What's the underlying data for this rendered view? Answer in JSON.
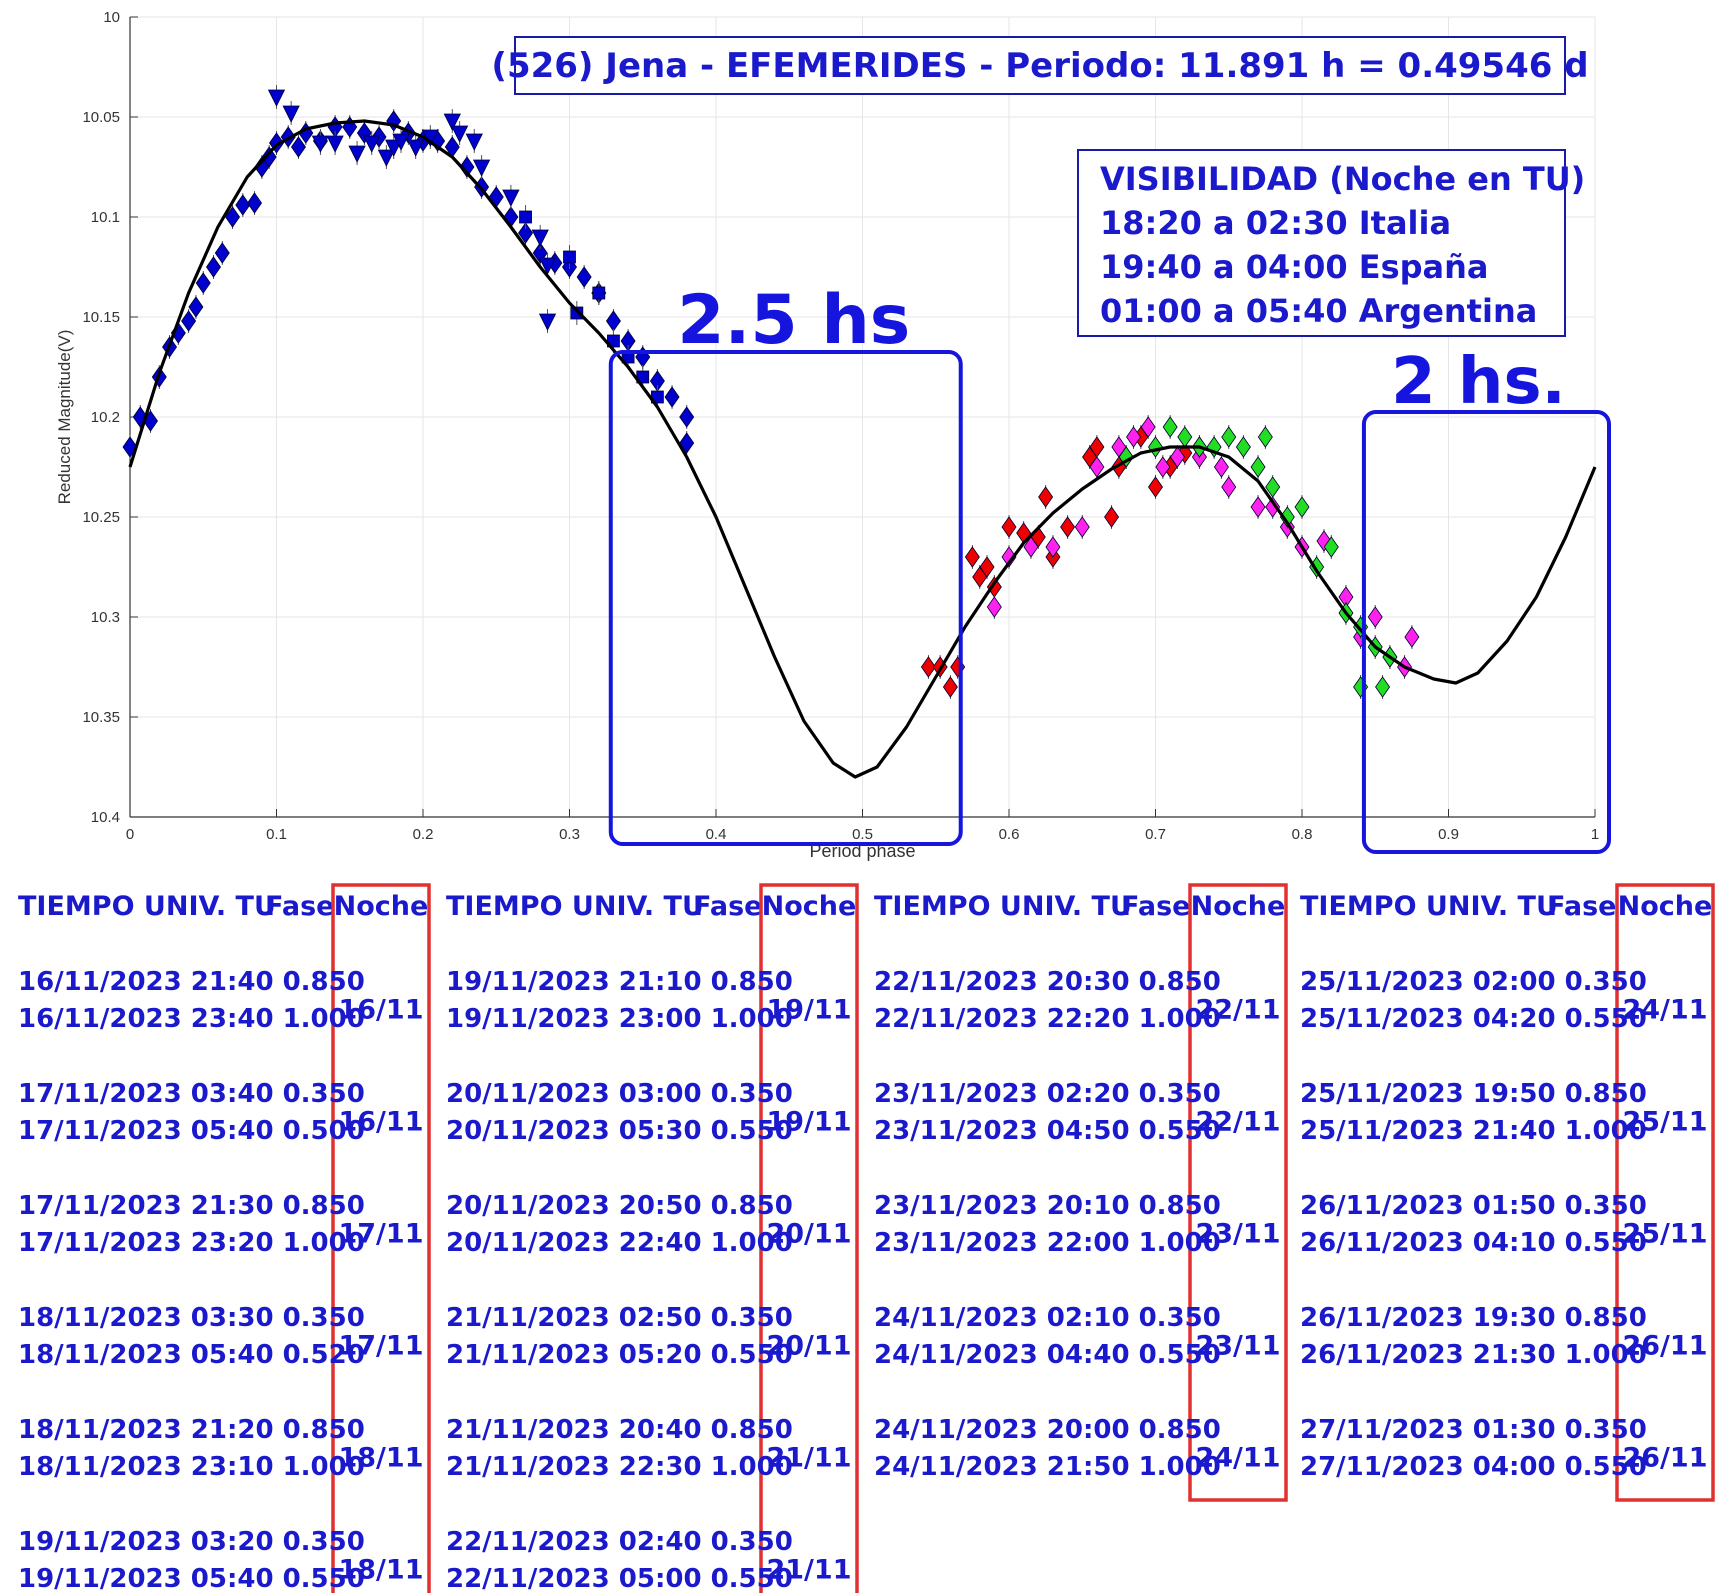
{
  "chart_data": {
    "type": "scatter",
    "title": "(526) Jena - EFEMERIDES - Periodo: 11.891 h = 0.49546 d",
    "xlabel": "Period phase",
    "ylabel": "Reduced Magnitude(V)",
    "xlim": [
      0,
      1
    ],
    "ylim": [
      10.4,
      10.0
    ],
    "y_inverted": true,
    "grid": true,
    "x_ticks": [
      "0",
      "0.1",
      "0.2",
      "0.3",
      "0.4",
      "0.5",
      "0.6",
      "0.7",
      "0.8",
      "0.9",
      "1"
    ],
    "y_ticks": [
      "10",
      "10.05",
      "10.1",
      "10.15",
      "10.2",
      "10.25",
      "10.3",
      "10.35",
      "10.4"
    ],
    "fit_curve": {
      "color": "#000000",
      "points": [
        [
          0,
          10.225
        ],
        [
          0.02,
          10.178
        ],
        [
          0.04,
          10.138
        ],
        [
          0.06,
          10.105
        ],
        [
          0.08,
          10.08
        ],
        [
          0.1,
          10.064
        ],
        [
          0.12,
          10.056
        ],
        [
          0.14,
          10.053
        ],
        [
          0.16,
          10.052
        ],
        [
          0.18,
          10.054
        ],
        [
          0.2,
          10.06
        ],
        [
          0.22,
          10.07
        ],
        [
          0.24,
          10.086
        ],
        [
          0.26,
          10.105
        ],
        [
          0.28,
          10.125
        ],
        [
          0.3,
          10.143
        ],
        [
          0.32,
          10.158
        ],
        [
          0.34,
          10.175
        ],
        [
          0.36,
          10.195
        ],
        [
          0.38,
          10.22
        ],
        [
          0.4,
          10.25
        ],
        [
          0.42,
          10.285
        ],
        [
          0.44,
          10.32
        ],
        [
          0.46,
          10.352
        ],
        [
          0.48,
          10.373
        ],
        [
          0.495,
          10.38
        ],
        [
          0.51,
          10.375
        ],
        [
          0.53,
          10.355
        ],
        [
          0.55,
          10.33
        ],
        [
          0.57,
          10.305
        ],
        [
          0.59,
          10.283
        ],
        [
          0.61,
          10.263
        ],
        [
          0.63,
          10.248
        ],
        [
          0.65,
          10.236
        ],
        [
          0.67,
          10.226
        ],
        [
          0.69,
          10.218
        ],
        [
          0.71,
          10.215
        ],
        [
          0.73,
          10.215
        ],
        [
          0.75,
          10.22
        ],
        [
          0.77,
          10.232
        ],
        [
          0.79,
          10.253
        ],
        [
          0.81,
          10.277
        ],
        [
          0.83,
          10.298
        ],
        [
          0.85,
          10.315
        ],
        [
          0.87,
          10.325
        ],
        [
          0.89,
          10.331
        ],
        [
          0.905,
          10.333
        ],
        [
          0.92,
          10.328
        ],
        [
          0.94,
          10.312
        ],
        [
          0.96,
          10.29
        ],
        [
          0.98,
          10.26
        ],
        [
          1.0,
          10.225
        ]
      ]
    },
    "series": [
      {
        "marker": "diamond",
        "color": "#0000cc",
        "points": [
          [
            0.0,
            10.215
          ],
          [
            0.007,
            10.2
          ],
          [
            0.014,
            10.202
          ],
          [
            0.02,
            10.18
          ],
          [
            0.027,
            10.165
          ],
          [
            0.033,
            10.158
          ],
          [
            0.04,
            10.152
          ],
          [
            0.045,
            10.145
          ],
          [
            0.05,
            10.133
          ],
          [
            0.057,
            10.125
          ],
          [
            0.063,
            10.118
          ],
          [
            0.07,
            10.1
          ],
          [
            0.077,
            10.094
          ],
          [
            0.085,
            10.093
          ],
          [
            0.09,
            10.075
          ],
          [
            0.095,
            10.07
          ],
          [
            0.1,
            10.063
          ],
          [
            0.108,
            10.06
          ],
          [
            0.115,
            10.065
          ],
          [
            0.12,
            10.058
          ],
          [
            0.13,
            10.062
          ],
          [
            0.14,
            10.055
          ],
          [
            0.15,
            10.055
          ],
          [
            0.16,
            10.058
          ],
          [
            0.17,
            10.06
          ],
          [
            0.18,
            10.052
          ],
          [
            0.19,
            10.058
          ],
          [
            0.2,
            10.062
          ],
          [
            0.21,
            10.062
          ],
          [
            0.22,
            10.065
          ],
          [
            0.23,
            10.075
          ],
          [
            0.24,
            10.085
          ],
          [
            0.25,
            10.09
          ],
          [
            0.26,
            10.1
          ],
          [
            0.27,
            10.108
          ],
          [
            0.28,
            10.118
          ],
          [
            0.29,
            10.123
          ],
          [
            0.3,
            10.125
          ],
          [
            0.31,
            10.13
          ],
          [
            0.32,
            10.138
          ],
          [
            0.33,
            10.152
          ],
          [
            0.34,
            10.162
          ],
          [
            0.35,
            10.17
          ],
          [
            0.36,
            10.182
          ],
          [
            0.37,
            10.19
          ],
          [
            0.38,
            10.2
          ],
          [
            0.38,
            10.213
          ]
        ]
      },
      {
        "marker": "triangle-down",
        "color": "#0000cc",
        "points": [
          [
            0.1,
            10.04
          ],
          [
            0.11,
            10.048
          ],
          [
            0.13,
            10.063
          ],
          [
            0.14,
            10.063
          ],
          [
            0.155,
            10.068
          ],
          [
            0.165,
            10.063
          ],
          [
            0.175,
            10.07
          ],
          [
            0.18,
            10.065
          ],
          [
            0.185,
            10.062
          ],
          [
            0.195,
            10.065
          ],
          [
            0.205,
            10.06
          ],
          [
            0.22,
            10.052
          ],
          [
            0.225,
            10.058
          ],
          [
            0.235,
            10.062
          ],
          [
            0.24,
            10.075
          ],
          [
            0.26,
            10.09
          ],
          [
            0.28,
            10.11
          ],
          [
            0.285,
            10.124
          ],
          [
            0.285,
            10.152
          ]
        ]
      },
      {
        "marker": "square",
        "color": "#0000cc",
        "points": [
          [
            0.27,
            10.1
          ],
          [
            0.3,
            10.12
          ],
          [
            0.305,
            10.148
          ],
          [
            0.32,
            10.138
          ],
          [
            0.33,
            10.162
          ],
          [
            0.34,
            10.17
          ],
          [
            0.35,
            10.18
          ],
          [
            0.36,
            10.19
          ]
        ]
      },
      {
        "marker": "diamond",
        "color": "#ee0000",
        "points": [
          [
            0.545,
            10.325
          ],
          [
            0.553,
            10.325
          ],
          [
            0.56,
            10.335
          ],
          [
            0.565,
            10.325
          ],
          [
            0.575,
            10.27
          ],
          [
            0.58,
            10.28
          ],
          [
            0.585,
            10.275
          ],
          [
            0.59,
            10.285
          ],
          [
            0.6,
            10.255
          ],
          [
            0.61,
            10.258
          ],
          [
            0.62,
            10.26
          ],
          [
            0.625,
            10.24
          ],
          [
            0.63,
            10.27
          ],
          [
            0.64,
            10.255
          ],
          [
            0.655,
            10.22
          ],
          [
            0.66,
            10.215
          ],
          [
            0.67,
            10.25
          ],
          [
            0.675,
            10.225
          ],
          [
            0.68,
            10.22
          ],
          [
            0.69,
            10.21
          ],
          [
            0.7,
            10.235
          ],
          [
            0.71,
            10.225
          ],
          [
            0.72,
            10.218
          ],
          [
            0.73,
            10.215
          ]
        ]
      },
      {
        "marker": "diamond",
        "color": "#ff22ee",
        "points": [
          [
            0.59,
            10.295
          ],
          [
            0.6,
            10.27
          ],
          [
            0.615,
            10.265
          ],
          [
            0.63,
            10.265
          ],
          [
            0.65,
            10.255
          ],
          [
            0.66,
            10.225
          ],
          [
            0.675,
            10.215
          ],
          [
            0.685,
            10.21
          ],
          [
            0.695,
            10.205
          ],
          [
            0.705,
            10.225
          ],
          [
            0.715,
            10.22
          ],
          [
            0.73,
            10.22
          ],
          [
            0.745,
            10.225
          ],
          [
            0.75,
            10.235
          ],
          [
            0.77,
            10.245
          ],
          [
            0.78,
            10.245
          ],
          [
            0.79,
            10.255
          ],
          [
            0.8,
            10.265
          ],
          [
            0.815,
            10.262
          ],
          [
            0.83,
            10.29
          ],
          [
            0.84,
            10.31
          ],
          [
            0.85,
            10.3
          ],
          [
            0.86,
            10.32
          ],
          [
            0.87,
            10.325
          ],
          [
            0.875,
            10.31
          ]
        ]
      },
      {
        "marker": "diamond",
        "color": "#22dd22",
        "points": [
          [
            0.68,
            10.22
          ],
          [
            0.7,
            10.215
          ],
          [
            0.71,
            10.205
          ],
          [
            0.72,
            10.21
          ],
          [
            0.73,
            10.215
          ],
          [
            0.74,
            10.215
          ],
          [
            0.75,
            10.21
          ],
          [
            0.76,
            10.215
          ],
          [
            0.77,
            10.225
          ],
          [
            0.775,
            10.21
          ],
          [
            0.78,
            10.235
          ],
          [
            0.79,
            10.25
          ],
          [
            0.8,
            10.245
          ],
          [
            0.81,
            10.275
          ],
          [
            0.82,
            10.265
          ],
          [
            0.83,
            10.298
          ],
          [
            0.84,
            10.305
          ],
          [
            0.85,
            10.315
          ],
          [
            0.86,
            10.32
          ],
          [
            0.84,
            10.335
          ],
          [
            0.855,
            10.335
          ]
        ]
      }
    ]
  },
  "annotations": {
    "visibility_lines": [
      "VISIBILIDAD (Noche en TU)",
      "18:20 a 02:30 Italia",
      "19:40 a 04:00 España",
      "01:00 a 05:40 Argentina"
    ],
    "box1_label": "2.5 hs",
    "box2_label": "2 hs.",
    "box1_range": [
      0.335,
      0.565
    ],
    "box2_range": [
      0.845,
      1.0
    ]
  },
  "colors": {
    "blue_text": "#1a1acc",
    "red_box": "#e03030",
    "frame": "#1a1aaa"
  },
  "tables": [
    {
      "header": {
        "time": "TIEMPO UNIV. TU",
        "phase": "Fase",
        "night": "Noche"
      },
      "pairs": [
        {
          "rows": [
            "16/11/2023  21:40 0.850",
            "16/11/2023  23:40 1.000"
          ],
          "night": "16/11"
        },
        {
          "rows": [
            "17/11/2023  03:40 0.350",
            "17/11/2023  05:40 0.500"
          ],
          "night": "16/11"
        },
        {
          "rows": [
            "17/11/2023  21:30 0.850",
            "17/11/2023  23:20 1.000"
          ],
          "night": "17/11"
        },
        {
          "rows": [
            "18/11/2023  03:30 0.350",
            "18/11/2023  05:40 0.520"
          ],
          "night": "17/11"
        },
        {
          "rows": [
            "18/11/2023  21:20 0.850",
            "18/11/2023  23:10 1.000"
          ],
          "night": "18/11"
        },
        {
          "rows": [
            "19/11/2023  03:20 0.350",
            "19/11/2023  05:40 0.550"
          ],
          "night": "18/11"
        }
      ]
    },
    {
      "header": {
        "time": "TIEMPO UNIV. TU",
        "phase": "Fase",
        "night": "Noche"
      },
      "pairs": [
        {
          "rows": [
            "19/11/2023  21:10 0.850",
            "19/11/2023  23:00 1.000"
          ],
          "night": "19/11"
        },
        {
          "rows": [
            "20/11/2023  03:00 0.350",
            "20/11/2023  05:30 0.550"
          ],
          "night": "19/11"
        },
        {
          "rows": [
            "20/11/2023  20:50 0.850",
            "20/11/2023  22:40 1.000"
          ],
          "night": "20/11"
        },
        {
          "rows": [
            "21/11/2023  02:50 0.350",
            "21/11/2023  05:20 0.550"
          ],
          "night": "20/11"
        },
        {
          "rows": [
            "21/11/2023  20:40 0.850",
            "21/11/2023  22:30 1.000"
          ],
          "night": "21/11"
        },
        {
          "rows": [
            "22/11/2023  02:40 0.350",
            "22/11/2023  05:00 0.550"
          ],
          "night": "21/11"
        }
      ]
    },
    {
      "header": {
        "time": "TIEMPO UNIV. TU",
        "phase": "Fase",
        "night": "Noche"
      },
      "pairs": [
        {
          "rows": [
            "22/11/2023  20:30 0.850",
            "22/11/2023  22:20 1.000"
          ],
          "night": "22/11"
        },
        {
          "rows": [
            "23/11/2023  02:20 0.350",
            "23/11/2023  04:50 0.550"
          ],
          "night": "22/11"
        },
        {
          "rows": [
            "23/11/2023  20:10 0.850",
            "23/11/2023  22:00 1.000"
          ],
          "night": "23/11"
        },
        {
          "rows": [
            "24/11/2023  02:10 0.350",
            "24/11/2023  04:40 0.550"
          ],
          "night": "23/11"
        },
        {
          "rows": [
            "24/11/2023  20:00 0.850",
            "24/11/2023  21:50 1.000"
          ],
          "night": "24/11"
        }
      ]
    },
    {
      "header": {
        "time": "TIEMPO UNIV. TU",
        "phase": "Fase",
        "night": "Noche"
      },
      "pairs": [
        {
          "rows": [
            "25/11/2023  02:00 0.350",
            "25/11/2023  04:20 0.550"
          ],
          "night": "24/11"
        },
        {
          "rows": [
            "25/11/2023  19:50 0.850",
            "25/11/2023  21:40 1.000"
          ],
          "night": "25/11"
        },
        {
          "rows": [
            "26/11/2023  01:50 0.350",
            "26/11/2023  04:10 0.550"
          ],
          "night": "25/11"
        },
        {
          "rows": [
            "26/11/2023  19:30 0.850",
            "26/11/2023  21:30 1.000"
          ],
          "night": "26/11"
        },
        {
          "rows": [
            "27/11/2023  01:30 0.350",
            "27/11/2023  04:00 0.550"
          ],
          "night": "26/11"
        }
      ]
    }
  ]
}
